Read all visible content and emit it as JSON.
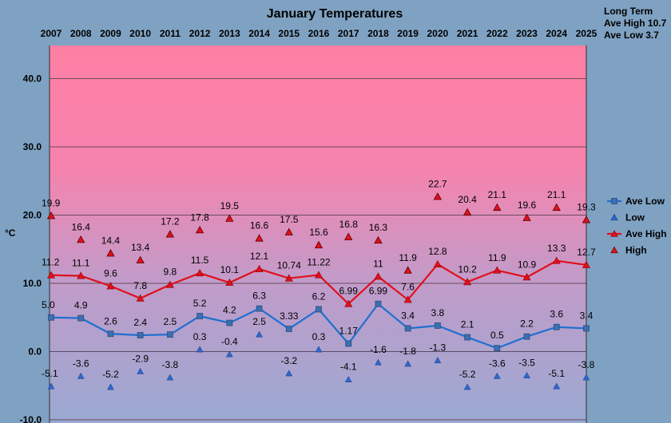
{
  "chart_data": {
    "type": "line",
    "title": "January Temperatures",
    "ylabel": "°C",
    "ylim": [
      -10,
      45
    ],
    "yticks": [
      "-10.0",
      "0.0",
      "10.0",
      "20.0",
      "30.0",
      "40.0"
    ],
    "ytick_values": [
      -10,
      0,
      10,
      20,
      30,
      40
    ],
    "grid": true,
    "legend_position": "right",
    "categories": [
      "2007",
      "2008",
      "2009",
      "2010",
      "2011",
      "2012",
      "2013",
      "2014",
      "2015",
      "2016",
      "2017",
      "2018",
      "2019",
      "2020",
      "2021",
      "2022",
      "2023",
      "2024",
      "2025"
    ],
    "series": [
      {
        "name": "Ave Low",
        "kind": "line-square",
        "color": "#1f6fd0",
        "values": [
          5.0,
          4.9,
          2.6,
          2.4,
          2.5,
          5.2,
          4.2,
          6.3,
          3.33,
          6.2,
          1.17,
          6.99,
          3.4,
          3.8,
          2.1,
          0.5,
          2.2,
          3.6,
          3.4
        ],
        "labels": [
          "5.0",
          "4.9",
          "2.6",
          "2.4",
          "2.5",
          "5.2",
          "4.2",
          "6.3",
          "3.33",
          "6.2",
          "1.17",
          "6.99",
          "3.4",
          "3.8",
          "2.1",
          "0.5",
          "2.2",
          "3.6",
          "3.4"
        ]
      },
      {
        "name": "Low",
        "kind": "marker-triangle",
        "color": "#2f66c9",
        "values": [
          -5.1,
          -3.6,
          -5.2,
          -2.9,
          -3.8,
          0.3,
          -0.4,
          2.5,
          -3.2,
          0.3,
          -4.1,
          -1.6,
          -1.8,
          -1.3,
          -5.2,
          -3.6,
          -3.5,
          -5.1,
          -3.8
        ],
        "labels": [
          "-5.1",
          "-3.6",
          "-5.2",
          "-2.9",
          "-3.8",
          "0.3",
          "-0.4",
          "2.5",
          "-3.2",
          "0.3",
          "-4.1",
          "-1.6",
          "-1.8",
          "-1.3",
          "-5.2",
          "-3.6",
          "-3.5",
          "-5.1",
          "-3.8"
        ]
      },
      {
        "name": "Ave High",
        "kind": "line-triangle",
        "color": "#e0101c",
        "values": [
          11.2,
          11.1,
          9.6,
          7.8,
          9.8,
          11.5,
          10.1,
          12.1,
          10.74,
          11.22,
          6.99,
          11,
          7.6,
          12.8,
          10.2,
          11.9,
          10.9,
          13.3,
          12.7
        ],
        "labels": [
          "11.2",
          "11.1",
          "9.6",
          "7.8",
          "9.8",
          "11.5",
          "10.1",
          "12.1",
          "10.74",
          "11.22",
          "6.99",
          "11",
          "7.6",
          "12.8",
          "10.2",
          "11.9",
          "10.9",
          "13.3",
          "12.7"
        ]
      },
      {
        "name": "High",
        "kind": "marker-triangle",
        "color": "#e0101c",
        "values": [
          19.9,
          16.4,
          14.4,
          13.4,
          17.2,
          17.8,
          19.5,
          16.6,
          17.5,
          15.6,
          16.8,
          16.3,
          11.9,
          22.7,
          20.4,
          21.1,
          19.6,
          21.1,
          19.3
        ],
        "labels": [
          "19.9",
          "16.4",
          "14.4",
          "13.4",
          "17.2",
          "17.8",
          "19.5",
          "16.6",
          "17.5",
          "15.6",
          "16.8",
          "16.3",
          "11.9",
          "22.7",
          "20.4",
          "21.1",
          "19.6",
          "21.1",
          "19.3"
        ]
      }
    ],
    "side_note": {
      "title": "Long Term",
      "line1": "Ave High 10.7",
      "line2": "Ave Low 3.7"
    }
  }
}
